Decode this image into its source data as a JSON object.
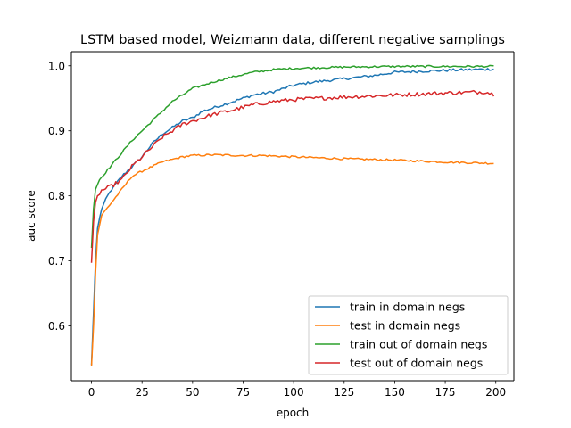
{
  "chart_data": {
    "type": "line",
    "title": "LSTM based model, Weizmann data, different negative samplings",
    "xlabel": "epoch",
    "ylabel": "auc score",
    "xlim": [
      -9.95,
      208.95
    ],
    "ylim": [
      0.5157,
      1.0216
    ],
    "xticks": [
      0,
      25,
      50,
      75,
      100,
      125,
      150,
      175,
      200
    ],
    "yticks": [
      0.6,
      0.7,
      0.8,
      0.9,
      1.0
    ],
    "ytick_labels": [
      "0.6",
      "0.7",
      "0.8",
      "0.9",
      "1.0"
    ],
    "grid": false,
    "legend_position": "lower-right",
    "n_epochs": 199,
    "series": [
      {
        "name": "train in domain negs",
        "color": "#1f77b4",
        "keypoints": [
          [
            0,
            0.54
          ],
          [
            1,
            0.62
          ],
          [
            2,
            0.7
          ],
          [
            3,
            0.75
          ],
          [
            5,
            0.78
          ],
          [
            8,
            0.8
          ],
          [
            10,
            0.81
          ],
          [
            15,
            0.83
          ],
          [
            20,
            0.845
          ],
          [
            25,
            0.86
          ],
          [
            30,
            0.88
          ],
          [
            35,
            0.895
          ],
          [
            40,
            0.905
          ],
          [
            45,
            0.915
          ],
          [
            50,
            0.92
          ],
          [
            55,
            0.93
          ],
          [
            60,
            0.935
          ],
          [
            70,
            0.945
          ],
          [
            80,
            0.955
          ],
          [
            90,
            0.96
          ],
          [
            100,
            0.97
          ],
          [
            110,
            0.975
          ],
          [
            125,
            0.98
          ],
          [
            140,
            0.985
          ],
          [
            150,
            0.99
          ],
          [
            175,
            0.993
          ],
          [
            199,
            0.995
          ]
        ],
        "noise": 0.002
      },
      {
        "name": "test in domain negs",
        "color": "#ff7f0e",
        "keypoints": [
          [
            0,
            0.538
          ],
          [
            1,
            0.6
          ],
          [
            2,
            0.68
          ],
          [
            3,
            0.74
          ],
          [
            5,
            0.77
          ],
          [
            10,
            0.79
          ],
          [
            15,
            0.81
          ],
          [
            20,
            0.83
          ],
          [
            25,
            0.838
          ],
          [
            30,
            0.845
          ],
          [
            35,
            0.852
          ],
          [
            40,
            0.856
          ],
          [
            45,
            0.86
          ],
          [
            50,
            0.862
          ],
          [
            60,
            0.863
          ],
          [
            75,
            0.862
          ],
          [
            85,
            0.862
          ],
          [
            100,
            0.86
          ],
          [
            125,
            0.857
          ],
          [
            150,
            0.855
          ],
          [
            175,
            0.852
          ],
          [
            199,
            0.85
          ]
        ],
        "noise": 0.0015
      },
      {
        "name": "train out of domain negs",
        "color": "#2ca02c",
        "keypoints": [
          [
            0,
            0.72
          ],
          [
            1,
            0.78
          ],
          [
            2,
            0.81
          ],
          [
            4,
            0.825
          ],
          [
            8,
            0.84
          ],
          [
            12,
            0.855
          ],
          [
            16,
            0.87
          ],
          [
            20,
            0.885
          ],
          [
            25,
            0.9
          ],
          [
            30,
            0.915
          ],
          [
            35,
            0.93
          ],
          [
            40,
            0.945
          ],
          [
            45,
            0.955
          ],
          [
            50,
            0.965
          ],
          [
            60,
            0.975
          ],
          [
            70,
            0.983
          ],
          [
            80,
            0.99
          ],
          [
            90,
            0.994
          ],
          [
            100,
            0.996
          ],
          [
            125,
            0.998
          ],
          [
            150,
            0.999
          ],
          [
            199,
            0.999
          ]
        ],
        "noise": 0.0015
      },
      {
        "name": "test out of domain negs",
        "color": "#d62728",
        "keypoints": [
          [
            0,
            0.697
          ],
          [
            1,
            0.76
          ],
          [
            2,
            0.79
          ],
          [
            3,
            0.8
          ],
          [
            5,
            0.808
          ],
          [
            10,
            0.815
          ],
          [
            15,
            0.825
          ],
          [
            20,
            0.845
          ],
          [
            25,
            0.86
          ],
          [
            30,
            0.875
          ],
          [
            35,
            0.89
          ],
          [
            40,
            0.9
          ],
          [
            45,
            0.91
          ],
          [
            50,
            0.915
          ],
          [
            60,
            0.925
          ],
          [
            70,
            0.932
          ],
          [
            80,
            0.94
          ],
          [
            90,
            0.945
          ],
          [
            100,
            0.948
          ],
          [
            125,
            0.952
          ],
          [
            150,
            0.955
          ],
          [
            175,
            0.958
          ],
          [
            195,
            0.96
          ],
          [
            199,
            0.956
          ]
        ],
        "noise": 0.003
      }
    ]
  }
}
